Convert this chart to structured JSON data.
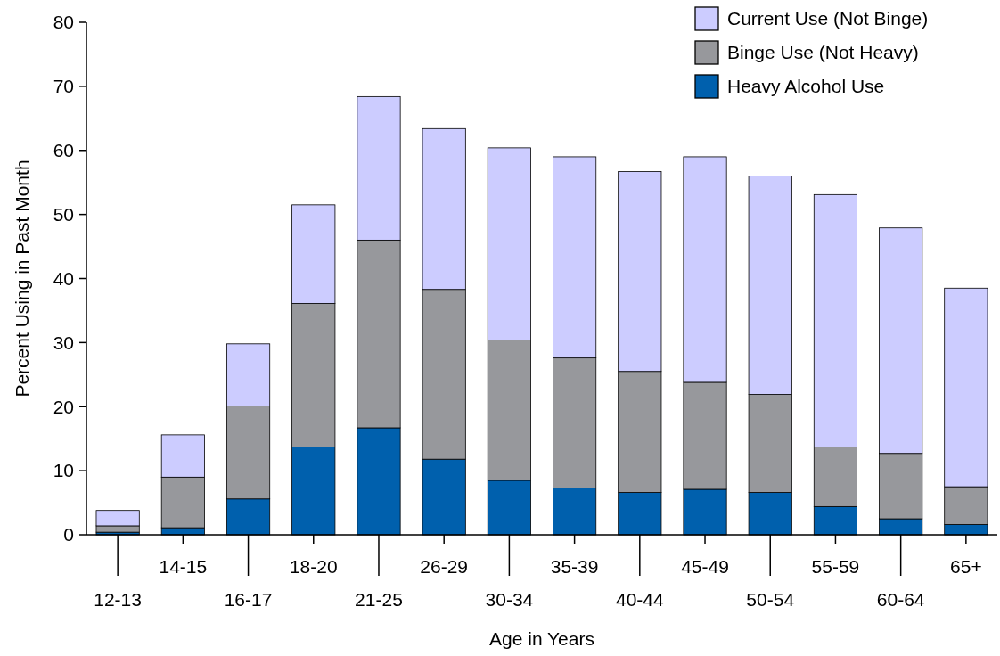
{
  "chart_data": {
    "type": "bar",
    "stacked": true,
    "xlabel": "Age in Years",
    "ylabel": "Percent Using in Past Month",
    "categories": [
      "12-13",
      "14-15",
      "16-17",
      "18-20",
      "21-25",
      "26-29",
      "30-34",
      "35-39",
      "40-44",
      "45-49",
      "50-54",
      "55-59",
      "60-64",
      "65+"
    ],
    "series": [
      {
        "name": "Heavy Alcohol Use",
        "color": "#0060ad",
        "values": [
          0.4,
          1.1,
          5.6,
          13.7,
          16.7,
          11.8,
          8.5,
          7.3,
          6.6,
          7.1,
          6.6,
          4.4,
          2.5,
          1.6
        ]
      },
      {
        "name": "Binge Use (Not Heavy)",
        "color": "#97989c",
        "values": [
          1.0,
          7.9,
          14.5,
          22.4,
          29.3,
          26.5,
          21.9,
          20.3,
          18.9,
          16.7,
          15.3,
          9.3,
          10.2,
          5.9
        ]
      },
      {
        "name": "Current Use (Not Binge)",
        "color": "#ccccff",
        "values": [
          2.4,
          6.6,
          9.7,
          15.4,
          22.4,
          25.1,
          30.0,
          31.4,
          31.2,
          35.2,
          34.1,
          39.4,
          35.2,
          31.0
        ]
      }
    ],
    "ylim": [
      0,
      80
    ],
    "yticks": [
      0,
      10,
      20,
      30,
      40,
      50,
      60,
      70,
      80
    ],
    "grid": false,
    "legend": "top right"
  }
}
